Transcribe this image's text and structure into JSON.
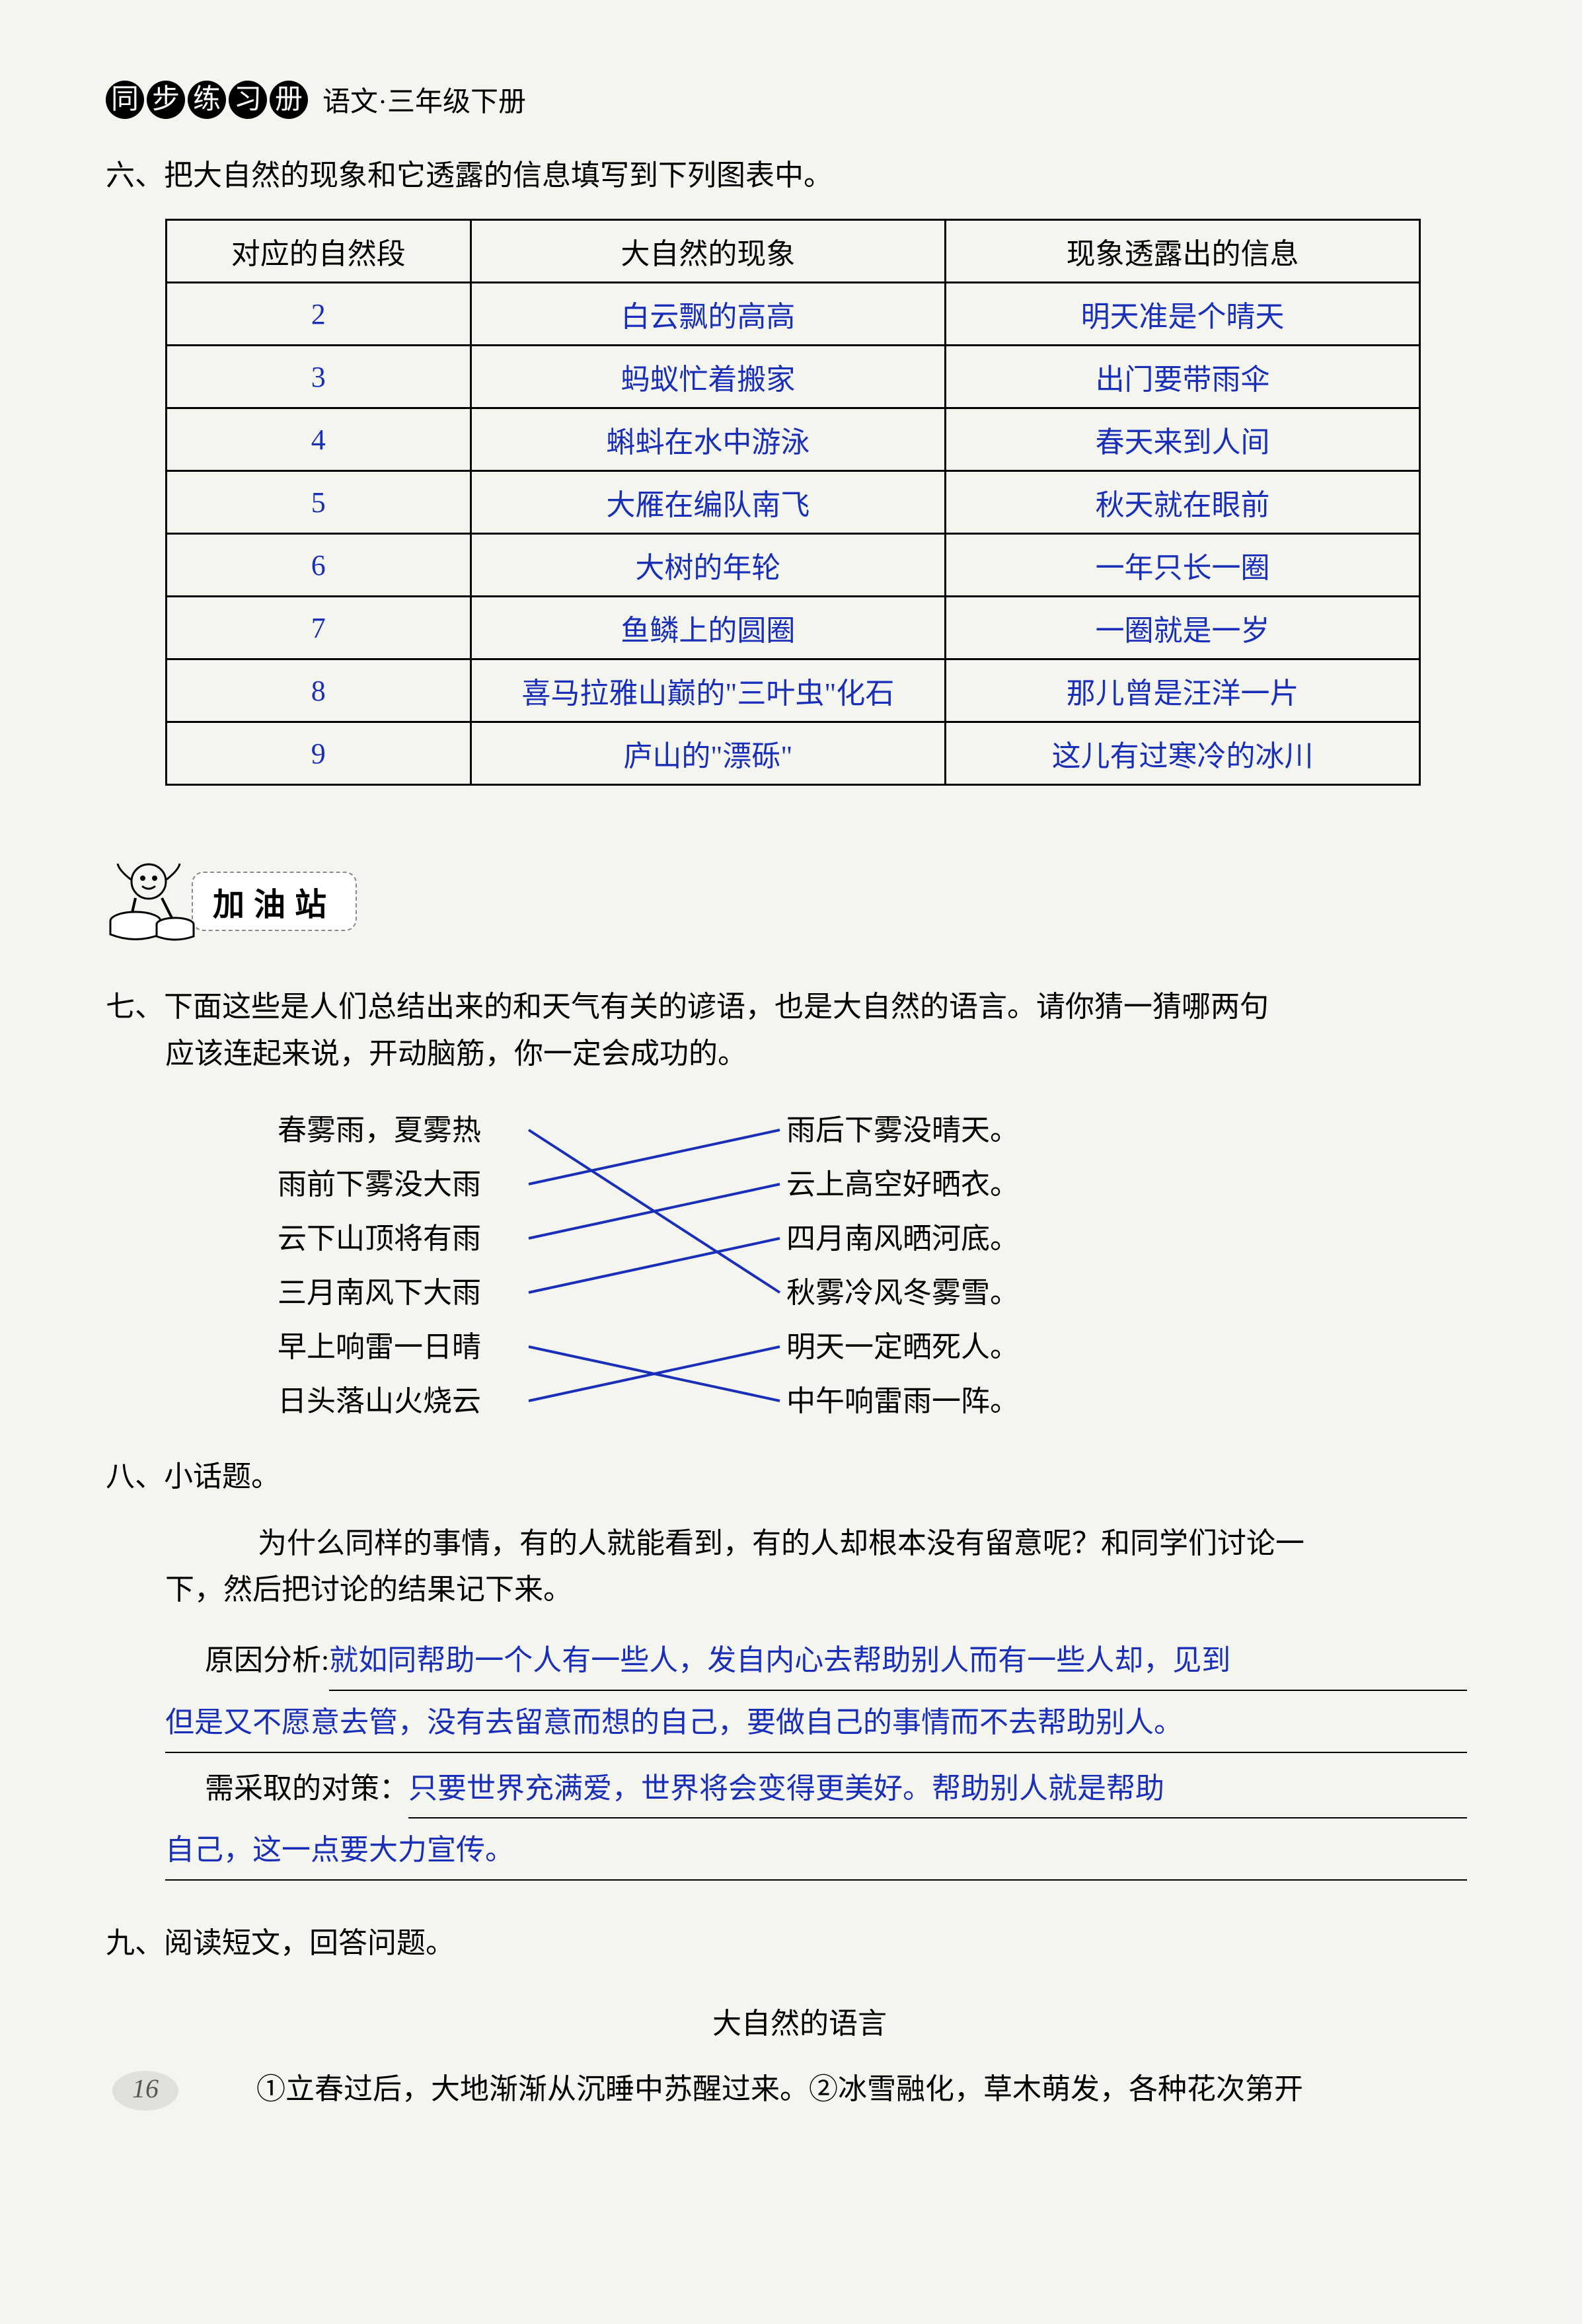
{
  "header": {
    "circles": [
      "同",
      "步",
      "练",
      "习",
      "册"
    ],
    "subtitle": "语文·三年级下册"
  },
  "q6": {
    "prompt": "六、把大自然的现象和它透露的信息填写到下列图表中。",
    "table": {
      "headers": [
        "对应的自然段",
        "大自然的现象",
        "现象透露出的信息"
      ],
      "rows": [
        {
          "n": "2",
          "phen": "白云飘的高高",
          "info": "明天准是个晴天",
          "small": false
        },
        {
          "n": "3",
          "phen": "蚂蚁忙着搬家",
          "info": "出门要带雨伞",
          "small": false
        },
        {
          "n": "4",
          "phen": "蝌蚪在水中游泳",
          "info": "春天来到人间",
          "small": false
        },
        {
          "n": "5",
          "phen": "大雁在编队南飞",
          "info": "秋天就在眼前",
          "small": false
        },
        {
          "n": "6",
          "phen": "大树的年轮",
          "info": "一年只长一圈",
          "small": false
        },
        {
          "n": "7",
          "phen": "鱼鳞上的圆圈",
          "info": "一圈就是一岁",
          "small": false
        },
        {
          "n": "8",
          "phen": "喜马拉雅山巅的\"三叶虫\"化石",
          "info": "那儿曾是汪洋一片",
          "small": true
        },
        {
          "n": "9",
          "phen": "庐山的\"漂砾\"",
          "info": "这儿有过寒冷的冰川",
          "small": false
        }
      ]
    }
  },
  "section_title": "加油站",
  "q7": {
    "prompt_l1": "七、下面这些是人们总结出来的和天气有关的谚语，也是大自然的语言。请你猜一猜哪两句",
    "prompt_l2": "应该连起来说，开动脑筋，你一定会成功的。",
    "left": [
      "春雾雨，夏雾热",
      "雨前下雾没大雨",
      "云下山顶将有雨",
      "三月南风下大雨",
      "早上响雷一日晴",
      "日头落山火烧云"
    ],
    "right": [
      "雨后下雾没晴天。",
      "云上高空好晒衣。",
      "四月南风晒河底。",
      "秋雾冷风冬雾雪。",
      "明天一定晒死人。",
      "中午响雷雨一阵。"
    ],
    "connections": [
      [
        0,
        3
      ],
      [
        1,
        0
      ],
      [
        2,
        1
      ],
      [
        3,
        2
      ],
      [
        4,
        5
      ],
      [
        5,
        4
      ]
    ],
    "line_color": "#1a2fb8"
  },
  "q8": {
    "prompt": "八、小话题。",
    "body_l1": "为什么同样的事情，有的人就能看到，有的人却根本没有留意呢？和同学们讨论一",
    "body_l2": "下，然后把讨论的结果记下来。",
    "label1": "原因分析:",
    "ans1_l1": "就如同帮助一个人有一些人，发自内心去帮助别人而有一些人却，见到",
    "ans1_l2": "但是又不愿意去管，没有去留意而想的自己，要做自己的事情而不去帮助别人。",
    "label2": "需采取的对策：",
    "ans2_l1": "只要世界充满爱，世界将会变得更美好。帮助别人就是帮助",
    "ans2_l2": "自己，这一点要大力宣传。"
  },
  "q9": {
    "prompt": "九、阅读短文，回答问题。",
    "title": "大自然的语言",
    "para": "①立春过后，大地渐渐从沉睡中苏醒过来。②冰雪融化，草木萌发，各种花次第开"
  },
  "page_number": "16",
  "colors": {
    "answer_blue": "#1a2fb8",
    "text_black": "#000000",
    "bg": "#f5f5f0"
  }
}
